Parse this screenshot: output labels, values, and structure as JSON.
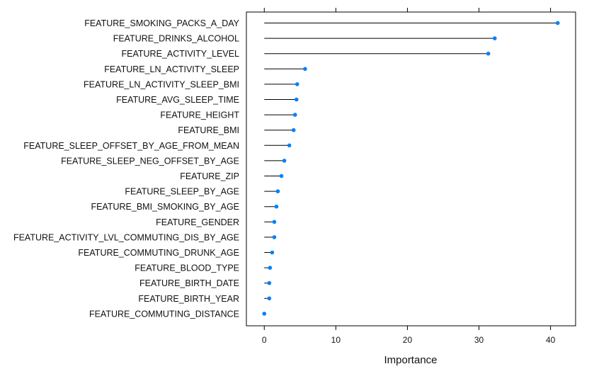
{
  "chart_data": {
    "type": "lollipop",
    "orientation": "horizontal",
    "xlabel": "Importance",
    "ylabel": "",
    "title": "",
    "xlim": [
      -2.5,
      43.5
    ],
    "xticks": [
      0,
      10,
      20,
      30,
      40
    ],
    "xtick_labels": [
      "0",
      "10",
      "20",
      "30",
      "40"
    ],
    "grid": false,
    "point_color": "#0080ff",
    "line_color": "#000000",
    "categories": [
      "FEATURE_SMOKING_PACKS_A_DAY",
      "FEATURE_DRINKS_ALCOHOL",
      "FEATURE_ACTIVITY_LEVEL",
      "FEATURE_LN_ACTIVITY_SLEEP",
      "FEATURE_LN_ACTIVITY_SLEEP_BMI",
      "FEATURE_AVG_SLEEP_TIME",
      "FEATURE_HEIGHT",
      "FEATURE_BMI",
      "FEATURE_SLEEP_OFFSET_BY_AGE_FROM_MEAN",
      "FEATURE_SLEEP_NEG_OFFSET_BY_AGE",
      "FEATURE_ZIP",
      "FEATURE_SLEEP_BY_AGE",
      "FEATURE_BMI_SMOKING_BY_AGE",
      "FEATURE_GENDER",
      "FEATURE_ACTIVITY_LVL_COMMUTING_DIS_BY_AGE",
      "FEATURE_COMMUTING_DRUNK_AGE",
      "FEATURE_BLOOD_TYPE",
      "FEATURE_BIRTH_DATE",
      "FEATURE_BIRTH_YEAR",
      "FEATURE_COMMUTING_DISTANCE"
    ],
    "values": [
      41.0,
      32.2,
      31.3,
      5.7,
      4.6,
      4.5,
      4.3,
      4.1,
      3.5,
      2.8,
      2.4,
      1.9,
      1.7,
      1.4,
      1.4,
      1.1,
      0.8,
      0.7,
      0.7,
      0.0
    ]
  }
}
